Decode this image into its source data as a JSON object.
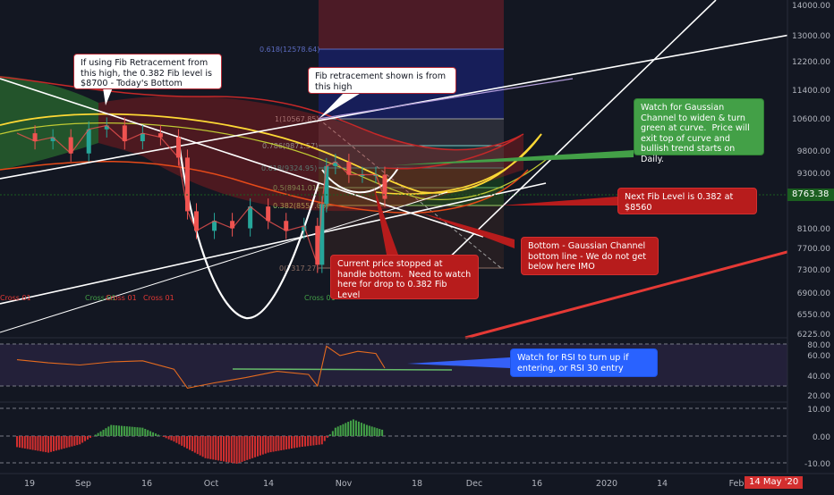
{
  "colors": {
    "background": "#131722",
    "grid": "#1f2433",
    "candle_up": "#26a69a",
    "candle_down": "#ef5350",
    "channel_fill": "#2e7d32",
    "channel_fill_red": "#b71c1c",
    "channel_mid": "#fbc02d",
    "rsi_line": "#e56b1f",
    "rsi_band": "#7e57c2",
    "price_badge": "#1b5e20",
    "date_badge": "#d32f2f"
  },
  "price_axis": {
    "labels": [
      "14000.00",
      "13000.00",
      "12200.00",
      "11400.00",
      "10600.00",
      "9800.00",
      "9300.00",
      "8100.00",
      "7700.00",
      "7300.00",
      "6900.00",
      "6550.00",
      "6225.00"
    ],
    "current_price": "8763.38"
  },
  "rsi_axis": {
    "labels": [
      "80.00",
      "60.00",
      "40.00",
      "20.00"
    ]
  },
  "osc_axis": {
    "labels": [
      "10.00",
      "0.00",
      "-10.00"
    ]
  },
  "time_axis": {
    "labels": [
      "19",
      "Sep",
      "16",
      "Oct",
      "14",
      "Nov",
      "18",
      "Dec",
      "16",
      "2020",
      "14",
      "Feb"
    ],
    "current_date": "14 May '20"
  },
  "fib_levels": [
    {
      "label": "0.618(12578.64)",
      "price": 12578.64
    },
    {
      "label": "1(10567.85)",
      "price": 10567.85
    },
    {
      "label": "0.786(9871.57)",
      "price": 9871.57
    },
    {
      "label": "0.618(9324.95)",
      "price": 9324.95
    },
    {
      "label": "0.5(8941.01)",
      "price": 8941.01
    },
    {
      "label": "0.382(8557.06)",
      "price": 8557.06
    },
    {
      "label": "0(7317.27)",
      "price": 7317.27
    }
  ],
  "cross_labels": [
    "Cross 01",
    "Cross 01",
    "Cross 01",
    "Cross 01",
    "Cross 01"
  ],
  "annotations": {
    "fib_from_high": "If using Fib Retracement from this high, the 0.382 Fib level is $8700 - Today's Bottom",
    "fib_shown": "Fib retracement shown is from this high",
    "watch_gaussian": "Watch for Gaussian Channel to widen & turn green at curve.  Price will exit top of curve and bullish trend starts on Daily.",
    "next_fib": "Next Fib Level is 0.382 at $8560",
    "bottom_gaussian": "Bottom - Gaussian Channel bottom line - We do not get below here IMO",
    "current_price_stop": "Current price stopped at handle bottom.  Need to watch here for drop to 0.382 Fib Level",
    "watch_rsi": "Watch for RSI to turn up if entering, or RSI 30 entry"
  },
  "chart_data": {
    "type": "candlestick",
    "title": "",
    "x_range": [
      "2019-08-15",
      "2020-02-05"
    ],
    "y_range": [
      6225,
      14300
    ],
    "y_scale": "log",
    "grid": true,
    "price": {
      "dates": [
        "2019-08-18",
        "2019-08-22",
        "2019-08-26",
        "2019-08-30",
        "2019-09-03",
        "2019-09-07",
        "2019-09-11",
        "2019-09-15",
        "2019-09-19",
        "2019-09-23",
        "2019-09-25",
        "2019-09-27",
        "2019-10-01",
        "2019-10-05",
        "2019-10-09",
        "2019-10-13",
        "2019-10-17",
        "2019-10-21",
        "2019-10-24",
        "2019-10-25",
        "2019-10-26",
        "2019-10-28",
        "2019-10-31",
        "2019-11-03",
        "2019-11-06",
        "2019-11-08"
      ],
      "close": [
        10300,
        10100,
        10200,
        9800,
        10400,
        10500,
        10100,
        10300,
        10200,
        9700,
        8500,
        8100,
        8300,
        8150,
        8600,
        8300,
        8100,
        8200,
        7450,
        8650,
        9500,
        9600,
        9300,
        9300,
        9300,
        8763
      ]
    },
    "fib_retracement": {
      "high": 10567.85,
      "low": 7317.27
    },
    "rsi": {
      "dates": [
        "2019-08-18",
        "2019-08-25",
        "2019-09-01",
        "2019-09-08",
        "2019-09-15",
        "2019-09-22",
        "2019-09-25",
        "2019-10-01",
        "2019-10-08",
        "2019-10-15",
        "2019-10-22",
        "2019-10-24",
        "2019-10-26",
        "2019-10-29",
        "2019-11-02",
        "2019-11-06",
        "2019-11-08"
      ],
      "values": [
        55,
        52,
        50,
        53,
        54,
        46,
        28,
        33,
        38,
        44,
        41,
        30,
        68,
        59,
        63,
        61,
        47
      ]
    },
    "oscillator": {
      "dates": [
        "2019-08-18",
        "2019-08-25",
        "2019-09-01",
        "2019-09-08",
        "2019-09-15",
        "2019-09-22",
        "2019-09-29",
        "2019-10-06",
        "2019-10-13",
        "2019-10-20",
        "2019-10-25",
        "2019-10-28",
        "2019-11-01",
        "2019-11-04",
        "2019-11-08"
      ],
      "values": [
        -4,
        -6,
        -3,
        4,
        3,
        -2,
        -8,
        -10,
        -6,
        -4,
        -3,
        3,
        6,
        4,
        2
      ]
    }
  }
}
